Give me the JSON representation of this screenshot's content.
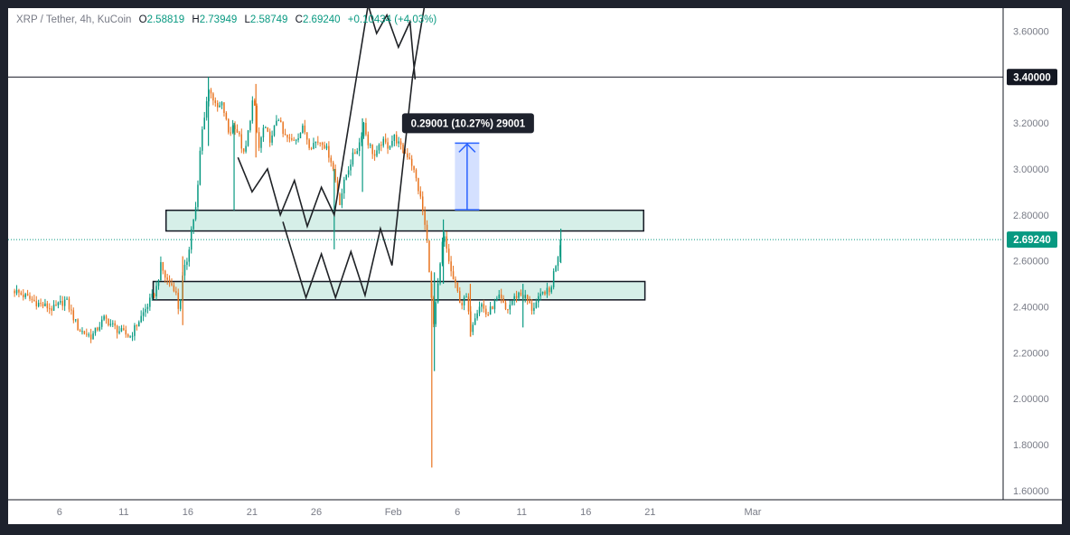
{
  "legend": {
    "symbol": "XRP / Tether, 4h, KuCoin",
    "open_label": "O",
    "open": "2.58819",
    "high_label": "H",
    "high": "2.73949",
    "low_label": "L",
    "low": "2.58749",
    "close_label": "C",
    "close": "2.69240",
    "change": "+0.10434 (+4.03%)"
  },
  "price_labels": [
    {
      "value": 3.4,
      "text": "3.40000",
      "style": "dark"
    },
    {
      "value": 2.6924,
      "text": "2.69240",
      "style": "accent"
    }
  ],
  "measure": {
    "text": "0.29001 (10.27%) 29001",
    "from": 2.8224,
    "to": 3.1124
  },
  "colors": {
    "up": "#089981",
    "down": "#e8731e",
    "zone_fill": "#d6efe8",
    "measure": "#2962ff",
    "last_price_line": "#089981"
  },
  "chart_data": {
    "type": "candlestick",
    "title": "XRP / Tether, 4h, KuCoin",
    "xlabel": "",
    "ylabel": "",
    "ylim": [
      1.56,
      3.7
    ],
    "yticks": [
      {
        "value": 3.6,
        "label": "3.60000"
      },
      {
        "value": 3.4,
        "label": "3.40000"
      },
      {
        "value": 3.2,
        "label": "3.20000"
      },
      {
        "value": 3.0,
        "label": "3.00000"
      },
      {
        "value": 2.8,
        "label": "2.80000"
      },
      {
        "value": 2.6,
        "label": "2.60000"
      },
      {
        "value": 2.4,
        "label": "2.40000"
      },
      {
        "value": 2.2,
        "label": "2.20000"
      },
      {
        "value": 2.0,
        "label": "2.00000"
      },
      {
        "value": 1.8,
        "label": "1.80000"
      },
      {
        "value": 1.6,
        "label": "1.60000"
      }
    ],
    "xlim": [
      2,
      79.5
    ],
    "xticks": [
      {
        "day": 6,
        "label": "6"
      },
      {
        "day": 11,
        "label": "11"
      },
      {
        "day": 16,
        "label": "16"
      },
      {
        "day": 21,
        "label": "21"
      },
      {
        "day": 26,
        "label": "26"
      },
      {
        "day": 32,
        "label": "Feb"
      },
      {
        "day": 37,
        "label": "6"
      },
      {
        "day": 42,
        "label": "11"
      },
      {
        "day": 47,
        "label": "16"
      },
      {
        "day": 52,
        "label": "21"
      },
      {
        "day": 60,
        "label": "Mar"
      }
    ],
    "close_path": [
      [
        2.5,
        2.47
      ],
      [
        3.5,
        2.44
      ],
      [
        4.5,
        2.41
      ],
      [
        5.5,
        2.39
      ],
      [
        6.5,
        2.43
      ],
      [
        7.5,
        2.3
      ],
      [
        8.5,
        2.27
      ],
      [
        9.5,
        2.35
      ],
      [
        10.5,
        2.3
      ],
      [
        11.5,
        2.27
      ],
      [
        12.5,
        2.37
      ],
      [
        13.5,
        2.47
      ],
      [
        13.9,
        2.58
      ],
      [
        14.3,
        2.52
      ],
      [
        15,
        2.48
      ],
      [
        15.3,
        2.38
      ],
      [
        15.6,
        2.53
      ],
      [
        16.0,
        2.62
      ],
      [
        16.3,
        2.75
      ],
      [
        16.7,
        2.85
      ],
      [
        17.0,
        3.12
      ],
      [
        17.4,
        3.28
      ],
      [
        17.7,
        3.36
      ],
      [
        18.2,
        3.26
      ],
      [
        18.7,
        3.28
      ],
      [
        19.2,
        3.15
      ],
      [
        19.6,
        3.2
      ],
      [
        20.0,
        3.14
      ],
      [
        20.4,
        3.05
      ],
      [
        20.8,
        3.2
      ],
      [
        21.1,
        3.32
      ],
      [
        21.5,
        3.08
      ],
      [
        21.9,
        3.18
      ],
      [
        22.5,
        3.12
      ],
      [
        23.0,
        3.24
      ],
      [
        23.4,
        3.15
      ],
      [
        24.0,
        3.12
      ],
      [
        24.5,
        3.14
      ],
      [
        25.0,
        3.18
      ],
      [
        25.5,
        3.1
      ],
      [
        26.0,
        3.12
      ],
      [
        26.5,
        3.12
      ],
      [
        27.1,
        3.05
      ],
      [
        27.4,
        2.98
      ],
      [
        27.8,
        2.85
      ],
      [
        28.3,
        2.97
      ],
      [
        28.8,
        3.05
      ],
      [
        29.3,
        3.1
      ],
      [
        29.7,
        3.2
      ],
      [
        30.0,
        3.12
      ],
      [
        30.6,
        3.05
      ],
      [
        31.1,
        3.12
      ],
      [
        31.6,
        3.1
      ],
      [
        32.1,
        3.14
      ],
      [
        32.7,
        3.08
      ],
      [
        33.3,
        3.05
      ],
      [
        33.8,
        2.95
      ],
      [
        34.2,
        2.85
      ],
      [
        34.6,
        2.7
      ],
      [
        34.9,
        2.5
      ],
      [
        35.1,
        2.3
      ],
      [
        35.3,
        2.4
      ],
      [
        35.6,
        2.55
      ],
      [
        35.9,
        2.72
      ],
      [
        36.2,
        2.64
      ],
      [
        36.5,
        2.55
      ],
      [
        36.9,
        2.48
      ],
      [
        37.3,
        2.41
      ],
      [
        37.7,
        2.44
      ],
      [
        38.0,
        2.3
      ],
      [
        38.4,
        2.37
      ],
      [
        38.8,
        2.42
      ],
      [
        39.3,
        2.36
      ],
      [
        39.8,
        2.41
      ],
      [
        40.3,
        2.44
      ],
      [
        40.8,
        2.38
      ],
      [
        41.3,
        2.43
      ],
      [
        41.8,
        2.46
      ],
      [
        42.3,
        2.44
      ],
      [
        42.8,
        2.39
      ],
      [
        43.3,
        2.43
      ],
      [
        43.8,
        2.47
      ],
      [
        44.2,
        2.46
      ],
      [
        44.5,
        2.55
      ],
      [
        44.8,
        2.62
      ],
      [
        45.05,
        2.69
      ]
    ],
    "spikes": [
      {
        "day": 15.6,
        "low": 2.32,
        "high": 2.62
      },
      {
        "day": 17.6,
        "low": 3.1,
        "high": 3.4
      },
      {
        "day": 19.6,
        "low": 2.82,
        "high": 3.2
      },
      {
        "day": 21.3,
        "low": 3.05,
        "high": 3.37
      },
      {
        "day": 27.4,
        "low": 2.65,
        "high": 3.0
      },
      {
        "day": 29.6,
        "low": 2.9,
        "high": 3.22
      },
      {
        "day": 35.0,
        "low": 1.7,
        "high": 2.5
      },
      {
        "day": 35.2,
        "low": 2.12,
        "high": 2.55
      },
      {
        "day": 35.9,
        "low": 2.5,
        "high": 2.78
      },
      {
        "day": 38.0,
        "low": 2.27,
        "high": 2.5
      },
      {
        "day": 42.1,
        "low": 2.31,
        "high": 2.5
      },
      {
        "day": 45.05,
        "low": 2.59,
        "high": 2.74
      }
    ],
    "horizontal_lines": [
      {
        "value": 3.4
      }
    ],
    "zones": [
      {
        "day_from": 14.3,
        "day_to": 51.5,
        "top": 2.82,
        "bottom": 2.73
      },
      {
        "day_from": 13.3,
        "day_to": 51.6,
        "top": 2.51,
        "bottom": 2.43
      }
    ],
    "drawn_paths": [
      [
        [
          19.9,
          3.05
        ],
        [
          21.0,
          2.9
        ],
        [
          22.2,
          3.0
        ],
        [
          23.2,
          2.8
        ],
        [
          24.3,
          2.95
        ],
        [
          25.3,
          2.75
        ],
        [
          26.4,
          2.92
        ],
        [
          27.4,
          2.8
        ],
        [
          30.0,
          3.7
        ]
      ],
      [
        [
          23.4,
          2.77
        ],
        [
          25.2,
          2.44
        ],
        [
          26.4,
          2.63
        ],
        [
          27.5,
          2.44
        ],
        [
          28.7,
          2.64
        ],
        [
          29.8,
          2.45
        ],
        [
          31.0,
          2.74
        ],
        [
          31.9,
          2.58
        ],
        [
          33.5,
          3.4
        ],
        [
          35.0,
          3.9
        ]
      ],
      [
        [
          29.8,
          3.76
        ],
        [
          30.7,
          3.59
        ],
        [
          31.5,
          3.67
        ],
        [
          32.4,
          3.53
        ],
        [
          33.3,
          3.64
        ],
        [
          33.7,
          3.39
        ]
      ]
    ]
  }
}
